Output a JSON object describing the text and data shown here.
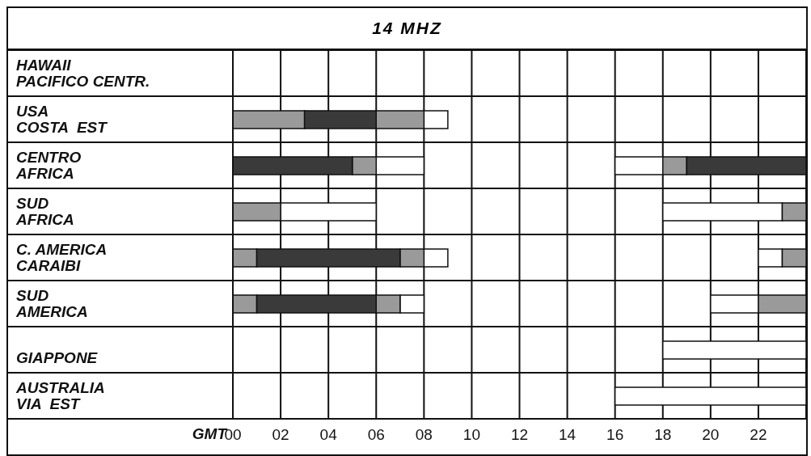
{
  "chart_data": {
    "type": "bar",
    "orientation": "horizontal",
    "title": "14 MHZ",
    "xlabel": "GMT",
    "categories": [
      "HAWAII\nPACIFICO CENTR.",
      "USA\nCOSTA  EST",
      "CENTRO\nAFRICA",
      "SUD\nAFRICA",
      "C. AMERICA\nCARAIBI",
      "SUD\nAMERICA",
      "\nGIAPPONE",
      "AUSTRALIA\nVIA  EST"
    ],
    "xlim": [
      0,
      24
    ],
    "xticks": [
      {
        "value": 0,
        "label": "00"
      },
      {
        "value": 2,
        "label": "02"
      },
      {
        "value": 4,
        "label": "04"
      },
      {
        "value": 6,
        "label": "06"
      },
      {
        "value": 8,
        "label": "08"
      },
      10,
      12,
      14,
      16,
      18,
      20,
      22
    ],
    "grid": true,
    "series": [
      {
        "color": "#ffffff",
        "base": [
          null,
          8,
          6,
          2,
          8,
          7,
          18,
          16
        ],
        "values": [
          null,
          1,
          2,
          4,
          1,
          1,
          6,
          8
        ]
      },
      {
        "color": "#ffffff",
        "base": [
          null,
          null,
          16,
          18,
          22,
          20,
          null,
          null
        ],
        "values": [
          null,
          null,
          2,
          5,
          1,
          2,
          null,
          null
        ]
      },
      {
        "color": "#9a9a9a",
        "base": [
          null,
          0,
          5,
          0,
          0,
          0,
          null,
          null
        ],
        "values": [
          null,
          3,
          1,
          2,
          1,
          1,
          null,
          null
        ]
      },
      {
        "color": "#9a9a9a",
        "base": [
          null,
          6,
          18,
          23,
          7,
          6,
          null,
          null
        ],
        "values": [
          null,
          2,
          1,
          1,
          1,
          1,
          null,
          null
        ]
      },
      {
        "color": "#9a9a9a",
        "base": [
          null,
          null,
          null,
          null,
          23,
          22,
          null,
          null
        ],
        "values": [
          null,
          null,
          null,
          null,
          1,
          2,
          null,
          null
        ]
      },
      {
        "color": "#3a3a3a",
        "base": [
          null,
          3,
          0,
          null,
          1,
          1,
          null,
          null
        ],
        "values": [
          null,
          3,
          5,
          null,
          6,
          5,
          null,
          null
        ]
      },
      {
        "color": "#3a3a3a",
        "base": [
          null,
          null,
          19,
          null,
          null,
          null,
          null,
          null
        ],
        "values": [
          null,
          null,
          5,
          null,
          null,
          null,
          null,
          null
        ]
      }
    ]
  }
}
